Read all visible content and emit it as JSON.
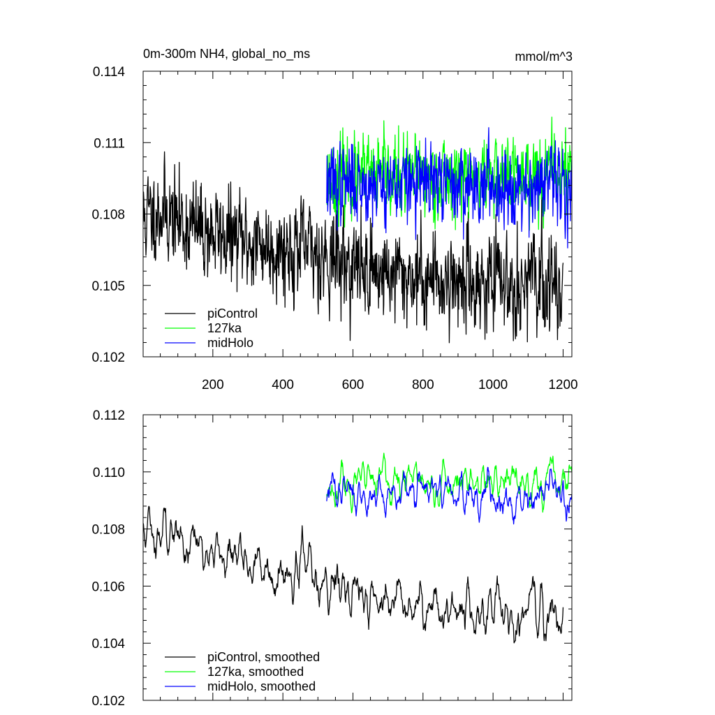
{
  "chart_data": [
    {
      "type": "line",
      "title": "0m-300m NH4, global_no_ms",
      "units": "mmol/m^3",
      "xlim": [
        1,
        1225
      ],
      "ylim": [
        0.102,
        0.114
      ],
      "xticks": [
        200,
        400,
        600,
        800,
        1000,
        1200
      ],
      "xtick_labels": [
        "200",
        "400",
        "600",
        "800",
        "1000",
        "1200"
      ],
      "yticks": [
        0.102,
        0.105,
        0.108,
        0.111,
        0.114
      ],
      "ytick_labels": [
        "0.102",
        "0.105",
        "0.108",
        "0.111",
        "0.114"
      ],
      "legend_position": "bottom-left",
      "series": [
        {
          "name": "piControl",
          "color": "#000000",
          "x_range": [
            1,
            1200
          ],
          "n_points": 1200,
          "anchors_x": [
            1,
            50,
            100,
            150,
            200,
            300,
            400,
            500,
            600,
            700,
            800,
            900,
            1000,
            1100,
            1200
          ],
          "anchors_y": [
            0.1078,
            0.1082,
            0.1077,
            0.1074,
            0.1072,
            0.1068,
            0.1066,
            0.1064,
            0.1058,
            0.1055,
            0.1053,
            0.1052,
            0.1051,
            0.1051,
            0.105
          ],
          "noise": 0.0011,
          "seed": 11
        },
        {
          "name": "127ka",
          "color": "#00ff00",
          "x_range": [
            525,
            1225
          ],
          "n_points": 700,
          "anchors_x": [
            525,
            1225
          ],
          "anchors_y": [
            0.1095,
            0.1097
          ],
          "noise": 0.0009,
          "seed": 23
        },
        {
          "name": "midHolo",
          "color": "#0000ff",
          "x_range": [
            525,
            1225
          ],
          "n_points": 700,
          "anchors_x": [
            525,
            1225
          ],
          "anchors_y": [
            0.1093,
            0.1092
          ],
          "noise": 0.0009,
          "seed": 37
        }
      ]
    },
    {
      "type": "line",
      "xlim": [
        1,
        1225
      ],
      "ylim": [
        0.102,
        0.112
      ],
      "xticks": [
        200,
        400,
        600,
        800,
        1000,
        1200
      ],
      "yticks": [
        0.102,
        0.104,
        0.106,
        0.108,
        0.11,
        0.112
      ],
      "ytick_labels": [
        "0.102",
        "0.104",
        "0.106",
        "0.108",
        "0.110",
        "0.112"
      ],
      "legend_position": "bottom-left",
      "series": [
        {
          "name": "piControl, smoothed",
          "color": "#000000",
          "x_range": [
            1,
            1200
          ],
          "n_points": 1200,
          "anchors_x": [
            1,
            50,
            100,
            150,
            200,
            300,
            400,
            500,
            600,
            700,
            800,
            900,
            1000,
            1100,
            1200
          ],
          "anchors_y": [
            0.1078,
            0.1082,
            0.1077,
            0.1074,
            0.1072,
            0.1068,
            0.1066,
            0.1064,
            0.1058,
            0.1055,
            0.1053,
            0.1052,
            0.1051,
            0.1051,
            0.105
          ],
          "noise": 0.0011,
          "seed": 11,
          "smooth_window": 9
        },
        {
          "name": "127ka, smoothed",
          "color": "#00ff00",
          "x_range": [
            525,
            1225
          ],
          "n_points": 700,
          "anchors_x": [
            525,
            1225
          ],
          "anchors_y": [
            0.1095,
            0.1097
          ],
          "noise": 0.0009,
          "seed": 23,
          "smooth_window": 9
        },
        {
          "name": "midHolo, smoothed",
          "color": "#0000ff",
          "x_range": [
            525,
            1225
          ],
          "n_points": 700,
          "anchors_x": [
            525,
            1225
          ],
          "anchors_y": [
            0.1093,
            0.1092
          ],
          "noise": 0.0009,
          "seed": 37,
          "smooth_window": 9
        }
      ]
    }
  ]
}
